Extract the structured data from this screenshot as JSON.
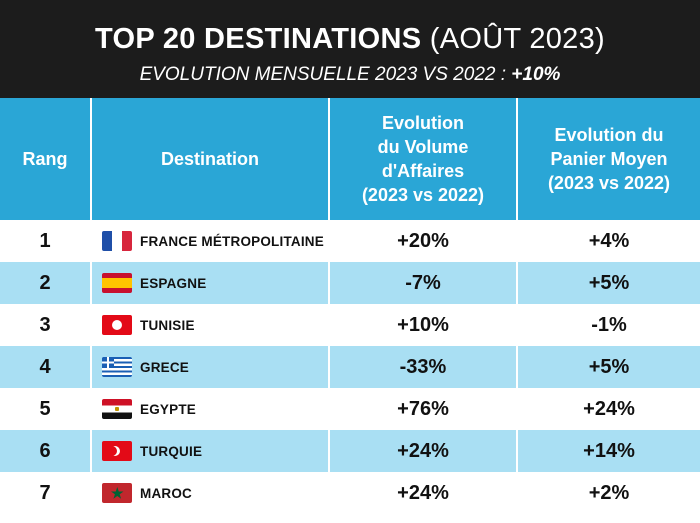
{
  "header": {
    "title_bold": "TOP 20 DESTINATIONS",
    "title_light": "(AOÛT 2023)",
    "subtitle_main": "EVOLUTION MENSUELLE 2023 VS 2022 :",
    "subtitle_value": "+10%"
  },
  "columns": {
    "rank": "Rang",
    "destination": "Destination",
    "volume": [
      "Evolution",
      "du Volume",
      "d'Affaires",
      "(2023 vs 2022)"
    ],
    "basket": [
      "Evolution du",
      "Panier Moyen",
      "(2023 vs 2022)"
    ]
  },
  "rows": [
    {
      "rank": "1",
      "destination": "FRANCE MÉTROPOLITAINE",
      "flag": "france-flag-icon",
      "volume": "+20%",
      "basket": "+4%"
    },
    {
      "rank": "2",
      "destination": "ESPAGNE",
      "flag": "spain-flag-icon",
      "volume": "-7%",
      "basket": "+5%"
    },
    {
      "rank": "3",
      "destination": "TUNISIE",
      "flag": "tunisia-flag-icon",
      "volume": "+10%",
      "basket": "-1%"
    },
    {
      "rank": "4",
      "destination": "GRECE",
      "flag": "greece-flag-icon",
      "volume": "-33%",
      "basket": "+5%"
    },
    {
      "rank": "5",
      "destination": "EGYPTE",
      "flag": "egypt-flag-icon",
      "volume": "+76%",
      "basket": "+24%"
    },
    {
      "rank": "6",
      "destination": "TURQUIE",
      "flag": "turkey-flag-icon",
      "volume": "+24%",
      "basket": "+14%"
    },
    {
      "rank": "7",
      "destination": "MAROC",
      "flag": "morocco-flag-icon",
      "volume": "+24%",
      "basket": "+2%"
    }
  ],
  "colors": {
    "header_bg": "#1c1c1c",
    "column_header_bg": "#2aa6d6",
    "alt_row_bg": "#a9dff3"
  }
}
